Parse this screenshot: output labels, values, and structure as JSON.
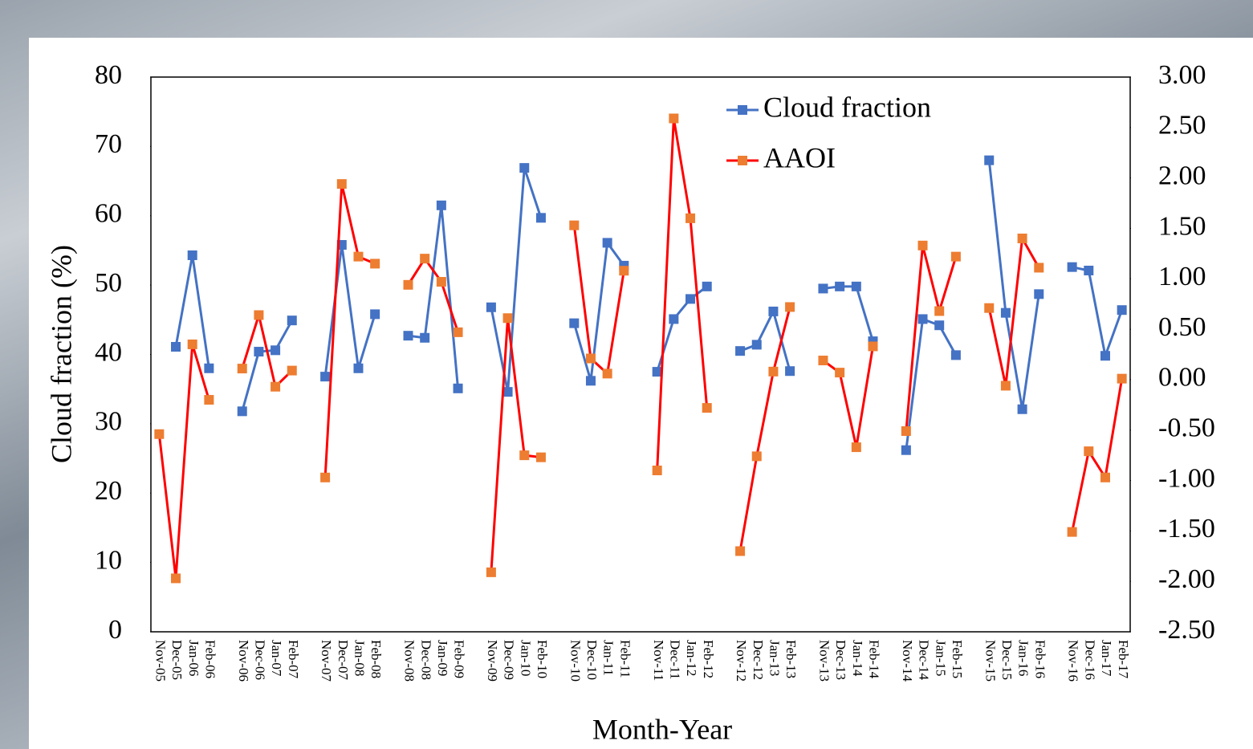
{
  "chart_data": {
    "type": "line",
    "categories": [
      "Nov-05",
      "Dec-05",
      "Jan-06",
      "Feb-06",
      null,
      "Nov-06",
      "Dec-06",
      "Jan-07",
      "Feb-07",
      null,
      "Nov-07",
      "Dec-07",
      "Jan-08",
      "Feb-08",
      null,
      "Nov-08",
      "Dec-08",
      "Jan-09",
      "Feb-09",
      null,
      "Nov-09",
      "Dec-09",
      "Jan-10",
      "Feb-10",
      null,
      "Nov-10",
      "Dec-10",
      "Jan-11",
      "Feb-11",
      null,
      "Nov-11",
      "Dec-11",
      "Jan-12",
      "Feb-12",
      null,
      "Nov-12",
      "Dec-12",
      "Jan-13",
      "Feb-13",
      null,
      "Nov-13",
      "Dec-13",
      "Jan-14",
      "Feb-14",
      null,
      "Nov-14",
      "Dec-14",
      "Jan-15",
      "Feb-15",
      null,
      "Nov-15",
      "Dec-15",
      "Jan-16",
      "Feb-16",
      null,
      "Nov-16",
      "Dec-16",
      "Jan-17",
      "Feb-17"
    ],
    "series": [
      {
        "name": "Cloud fraction",
        "color": "#4472c4",
        "marker_color": "#4472c4",
        "values": [
          null,
          41.1,
          54.3,
          38.0,
          null,
          31.8,
          40.4,
          40.6,
          44.9,
          null,
          36.8,
          55.8,
          38.0,
          45.8,
          null,
          42.7,
          42.4,
          61.5,
          35.1,
          null,
          46.8,
          34.6,
          66.9,
          59.7,
          null,
          44.5,
          36.2,
          56.1,
          52.8,
          null,
          37.5,
          45.1,
          48.0,
          49.8,
          null,
          40.5,
          41.4,
          46.2,
          37.6,
          null,
          49.5,
          49.8,
          49.8,
          41.9,
          null,
          26.2,
          45.1,
          44.2,
          39.9,
          null,
          68.0,
          46.0,
          32.1,
          48.7,
          null,
          52.6,
          52.1,
          39.8,
          46.4
        ]
      },
      {
        "name": "AAOI",
        "color": "#ff0000",
        "marker_color": "#ed7d31",
        "axis": "y2",
        "values": [
          -0.54,
          -1.97,
          0.35,
          -0.2,
          null,
          0.11,
          0.64,
          -0.07,
          0.09,
          null,
          -0.97,
          1.94,
          1.22,
          1.15,
          null,
          0.94,
          1.2,
          0.97,
          0.47,
          null,
          -1.91,
          0.61,
          -0.75,
          -0.77,
          null,
          1.53,
          0.21,
          0.06,
          1.08,
          null,
          -0.9,
          2.59,
          1.6,
          -0.28,
          null,
          -1.7,
          -0.76,
          0.08,
          0.72,
          null,
          0.19,
          0.07,
          -0.67,
          0.33,
          null,
          -0.51,
          1.33,
          0.68,
          1.22,
          null,
          0.71,
          -0.06,
          1.4,
          1.11,
          null,
          -1.51,
          -0.71,
          -0.97,
          0.01
        ]
      }
    ],
    "x_label": "Month-Year",
    "y_label": "Cloud fraction (%)",
    "ylim": [
      0,
      80
    ],
    "yticks": [
      0,
      10,
      20,
      30,
      40,
      50,
      60,
      70,
      80
    ],
    "y2lim": [
      -2.5,
      3
    ],
    "y2ticks": [
      {
        "value": -2.5,
        "label": "-2.50"
      },
      {
        "value": -2,
        "label": "-2.00"
      },
      {
        "value": -1.5,
        "label": "-1.50"
      },
      {
        "value": -1,
        "label": "-1.00"
      },
      {
        "value": -0.5,
        "label": "-0.50"
      },
      {
        "value": 0,
        "label": "0.00"
      },
      {
        "value": 0.5,
        "label": "0.50"
      },
      {
        "value": 1,
        "label": "1.00"
      },
      {
        "value": 1.5,
        "label": "1.50"
      },
      {
        "value": 2,
        "label": "2.00"
      },
      {
        "value": 2.5,
        "label": "2.50"
      },
      {
        "value": 3,
        "label": "3.00"
      }
    ],
    "legend": "top-right"
  }
}
